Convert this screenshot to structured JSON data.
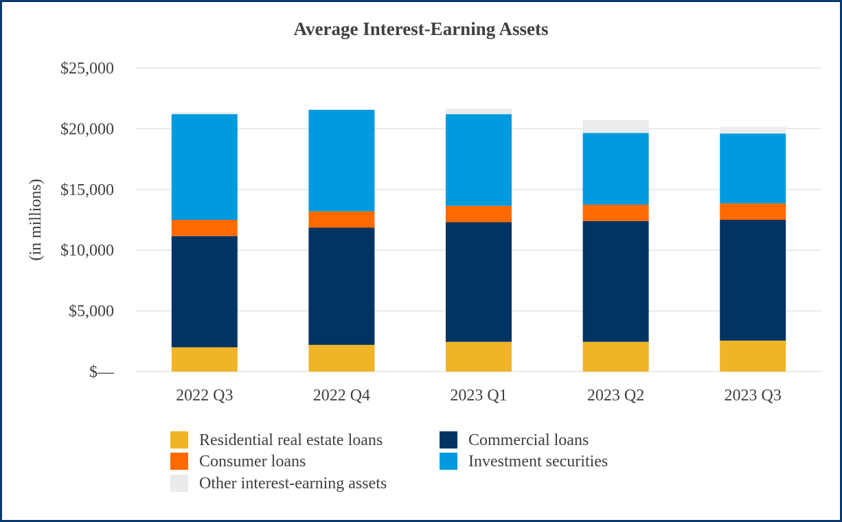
{
  "chart_data": {
    "type": "bar",
    "stacked": true,
    "title": "Average Interest-Earning Assets",
    "xlabel": "",
    "ylabel": "(in millions)",
    "ylim": [
      0,
      25000
    ],
    "yticks": [
      0,
      5000,
      10000,
      15000,
      20000,
      25000
    ],
    "ytick_labels": [
      "$—",
      "$5,000",
      "$10,000",
      "$15,000",
      "$20,000",
      "$25,000"
    ],
    "grid": true,
    "legend_position": "bottom",
    "categories": [
      "2022 Q3",
      "2022 Q4",
      "2023 Q1",
      "2023 Q2",
      "2023 Q3"
    ],
    "series": [
      {
        "name": "Residential real estate loans",
        "color": "#f0b429",
        "values": [
          2000,
          2200,
          2450,
          2450,
          2550
        ]
      },
      {
        "name": "Commercial loans",
        "color": "#003462",
        "values": [
          9150,
          9650,
          9850,
          9950,
          9950
        ]
      },
      {
        "name": "Consumer loans",
        "color": "#ff6a00",
        "values": [
          1350,
          1350,
          1350,
          1350,
          1350
        ]
      },
      {
        "name": "Investment securities",
        "color": "#009ade",
        "values": [
          8700,
          8350,
          7550,
          5900,
          5750
        ]
      },
      {
        "name": "Other interest-earning assets",
        "color": "#ebebeb",
        "values": [
          150,
          50,
          450,
          1050,
          550
        ]
      }
    ]
  }
}
